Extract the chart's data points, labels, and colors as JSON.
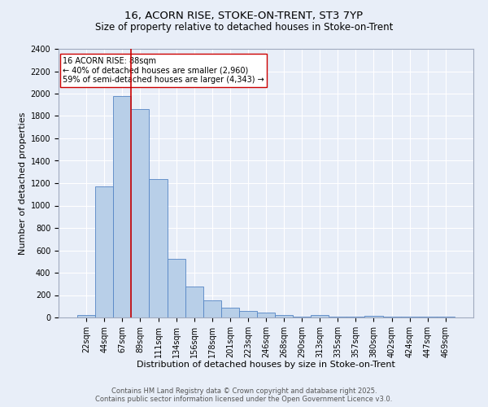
{
  "title_line1": "16, ACORN RISE, STOKE-ON-TRENT, ST3 7YP",
  "title_line2": "Size of property relative to detached houses in Stoke-on-Trent",
  "xlabel": "Distribution of detached houses by size in Stoke-on-Trent",
  "ylabel": "Number of detached properties",
  "bar_labels": [
    "22sqm",
    "44sqm",
    "67sqm",
    "89sqm",
    "111sqm",
    "134sqm",
    "156sqm",
    "178sqm",
    "201sqm",
    "223sqm",
    "246sqm",
    "268sqm",
    "290sqm",
    "313sqm",
    "335sqm",
    "357sqm",
    "380sqm",
    "402sqm",
    "424sqm",
    "447sqm",
    "469sqm"
  ],
  "bar_values": [
    25,
    1170,
    1980,
    1860,
    1240,
    525,
    275,
    155,
    90,
    55,
    45,
    20,
    10,
    20,
    5,
    5,
    15,
    5,
    5,
    5,
    5
  ],
  "bar_color": "#b8cfe8",
  "bar_edge_color": "#5585c5",
  "background_color": "#e8eef8",
  "grid_color": "#ffffff",
  "ylim": [
    0,
    2400
  ],
  "yticks": [
    0,
    200,
    400,
    600,
    800,
    1000,
    1200,
    1400,
    1600,
    1800,
    2000,
    2200,
    2400
  ],
  "vline_index": 2.5,
  "vline_color": "#cc0000",
  "annotation_text": "16 ACORN RISE: 88sqm\n← 40% of detached houses are smaller (2,960)\n59% of semi-detached houses are larger (4,343) →",
  "annotation_box_color": "#ffffff",
  "annotation_box_edge": "#cc0000",
  "footer_line1": "Contains HM Land Registry data © Crown copyright and database right 2025.",
  "footer_line2": "Contains public sector information licensed under the Open Government Licence v3.0.",
  "title_fontsize": 9.5,
  "subtitle_fontsize": 8.5,
  "axis_label_fontsize": 8,
  "tick_fontsize": 7,
  "annotation_fontsize": 7,
  "footer_fontsize": 6
}
